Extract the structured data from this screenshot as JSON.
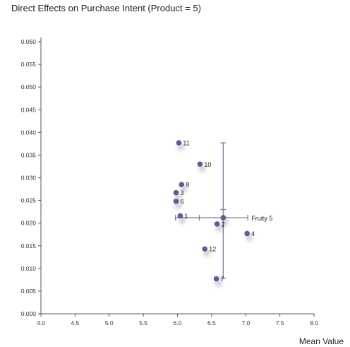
{
  "title": "Direct Effects on Purchase Intent (Product = 5)",
  "colors": {
    "point": "#5e5a96",
    "crosshair": "#7d78b4",
    "axis": "#555555"
  },
  "chart_data": {
    "type": "scatter",
    "title": "Direct Effects on Purchase Intent (Product = 5)",
    "xlabel": "Mean Value",
    "ylabel": "",
    "xlim": [
      4.0,
      8.0
    ],
    "ylim": [
      0.0,
      0.06
    ],
    "xticks": [
      "4.0",
      "4.5",
      "5.0",
      "5.5",
      "6.0",
      "6.5",
      "7.0",
      "7.5",
      "8.0"
    ],
    "yticks": [
      "0.000",
      "0.005",
      "0.010",
      "0.015",
      "0.020",
      "0.025",
      "0.030",
      "0.035",
      "0.040",
      "0.045",
      "0.050",
      "0.055",
      "0.060"
    ],
    "points": [
      {
        "label": "1",
        "x": 6.04,
        "y": 0.0216
      },
      {
        "label": "2",
        "x": 6.58,
        "y": 0.0198
      },
      {
        "label": "3",
        "x": 5.98,
        "y": 0.0267
      },
      {
        "label": "4",
        "x": 7.02,
        "y": 0.0177
      },
      {
        "label": "6",
        "x": 5.98,
        "y": 0.0248
      },
      {
        "label": "7",
        "x": 6.57,
        "y": 0.0077
      },
      {
        "label": "8",
        "x": 6.06,
        "y": 0.0285
      },
      {
        "label": "10",
        "x": 6.33,
        "y": 0.033
      },
      {
        "label": "11",
        "x": 6.02,
        "y": 0.0377
      },
      {
        "label": "12",
        "x": 6.4,
        "y": 0.0143
      }
    ],
    "reference": {
      "label": "Fruity 5",
      "x": 6.67,
      "y": 0.0212,
      "x_range": [
        5.97,
        7.03
      ],
      "x_inner_ticks": [
        6.32
      ],
      "y_range": [
        0.0078,
        0.0377
      ],
      "y_inner_ticks": [
        0.023
      ]
    },
    "grid": false,
    "legend": "none"
  }
}
